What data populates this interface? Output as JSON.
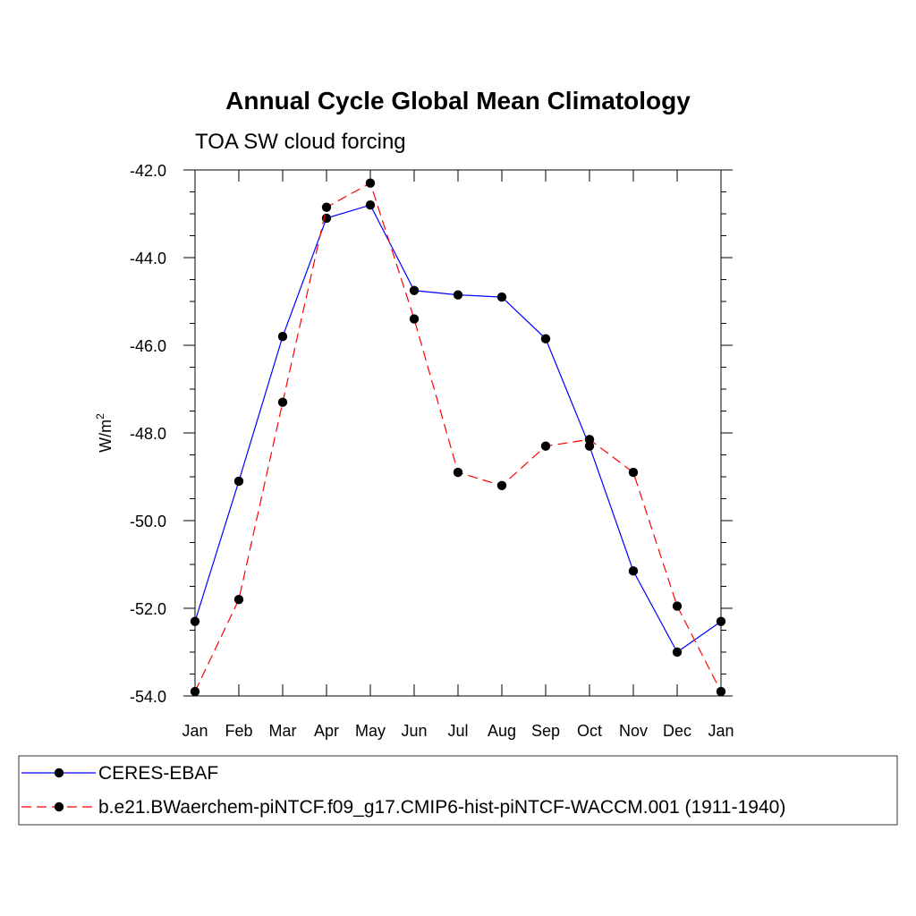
{
  "chart_data": {
    "type": "line",
    "title": "Annual Cycle Global Mean Climatology",
    "subtitle": "TOA SW cloud forcing",
    "ylabel": "W/m",
    "ylabel_superscript": "2",
    "xlabel": "",
    "ylim": [
      -54.0,
      -42.0
    ],
    "yticks": [
      "-42.0",
      "-44.0",
      "-46.0",
      "-48.0",
      "-50.0",
      "-52.0",
      "-54.0"
    ],
    "ytick_values": [
      -42,
      -44,
      -46,
      -48,
      -50,
      -52,
      -54
    ],
    "categories": [
      "Jan",
      "Feb",
      "Mar",
      "Apr",
      "May",
      "Jun",
      "Jul",
      "Aug",
      "Sep",
      "Oct",
      "Nov",
      "Dec",
      "Jan"
    ],
    "grid": false,
    "legend_position": "bottom",
    "series": [
      {
        "name": "CERES-EBAF",
        "color": "#0000ff",
        "dash": "solid",
        "values": [
          -52.3,
          -49.1,
          -45.8,
          -43.1,
          -42.8,
          -44.75,
          -44.85,
          -44.9,
          -45.85,
          -48.3,
          -51.15,
          -53.0,
          -52.3
        ]
      },
      {
        "name": "b.e21.BWaerchem-piNTCF.f09_g17.CMIP6-hist-piNTCF-WACCM.001 (1911-1940)",
        "color": "#ff0000",
        "dash": "dashed",
        "values": [
          -53.9,
          -51.8,
          -47.3,
          -42.85,
          -42.3,
          -45.4,
          -48.9,
          -49.2,
          -48.3,
          -48.15,
          -48.9,
          -51.95,
          -53.9
        ]
      }
    ]
  }
}
